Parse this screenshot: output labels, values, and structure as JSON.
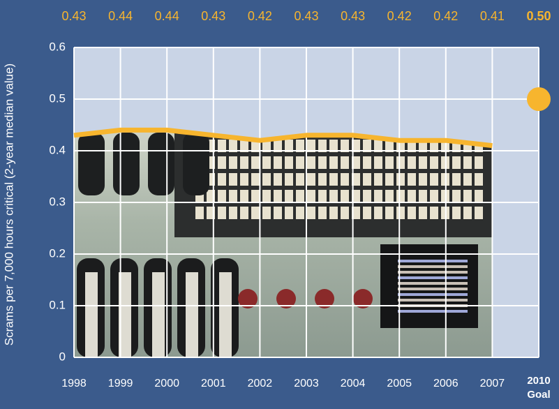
{
  "chart_data": {
    "type": "area",
    "y_label": "Scrams per 7,000 hours critical (2-year median value)",
    "categories": [
      "1998",
      "1999",
      "2000",
      "2001",
      "2002",
      "2003",
      "2004",
      "2005",
      "2006",
      "2007"
    ],
    "values": [
      0.43,
      0.44,
      0.44,
      0.43,
      0.42,
      0.43,
      0.43,
      0.42,
      0.42,
      0.41
    ],
    "color": "#f7b52e",
    "goal": {
      "category": "2010",
      "sublabel": "Goal",
      "value": 0.5,
      "value_label": "0.50"
    },
    "ylim": [
      0,
      0.6
    ],
    "yticks": [
      0,
      0.1,
      0.2,
      0.3,
      0.4,
      0.5,
      0.6
    ],
    "grid": true
  }
}
